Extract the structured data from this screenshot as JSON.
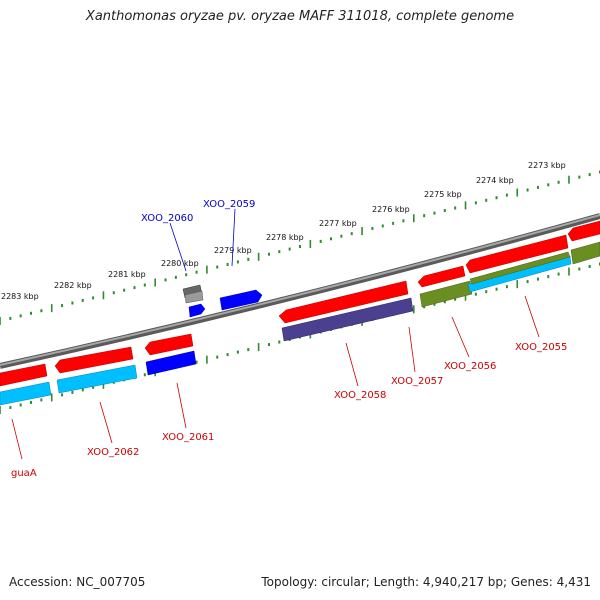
{
  "title": "Xanthomonas oryzae pv. oryzae MAFF 311018, complete genome",
  "footer": {
    "accession": "Accession: NC_007705",
    "summary": "Topology: circular; Length: 4,940,217 bp; Genes: 4,431"
  },
  "scale_labels": [
    "2283 kbp",
    "2282 kbp",
    "2281 kbp",
    "2280 kbp",
    "2279 kbp",
    "2278 kbp",
    "2277 kbp",
    "2276 kbp",
    "2275 kbp",
    "2274 kbp",
    "2273 kbp"
  ],
  "gene_labels": {
    "xoo_2060": "XOO_2060",
    "xoo_2059": "XOO_2059",
    "xoo_2058": "XOO_2058",
    "xoo_2057": "XOO_2057",
    "xoo_2056": "XOO_2056",
    "xoo_2055": "XOO_2055",
    "xoo_2061": "XOO_2061",
    "xoo_2062": "XOO_2062",
    "guaA": "guaA"
  },
  "colors": {
    "backbone": "#808080",
    "ticks": "#2e8b2e",
    "gene_red": "#ff0000",
    "cds_cyan": "#00bfff",
    "cds_blue": "#0000ff",
    "cds_purple": "#4b3f8f",
    "cds_olive": "#6b8e23",
    "cds_gray": "#666666",
    "label_red": "#cc0000",
    "label_blue": "#0000cc"
  }
}
